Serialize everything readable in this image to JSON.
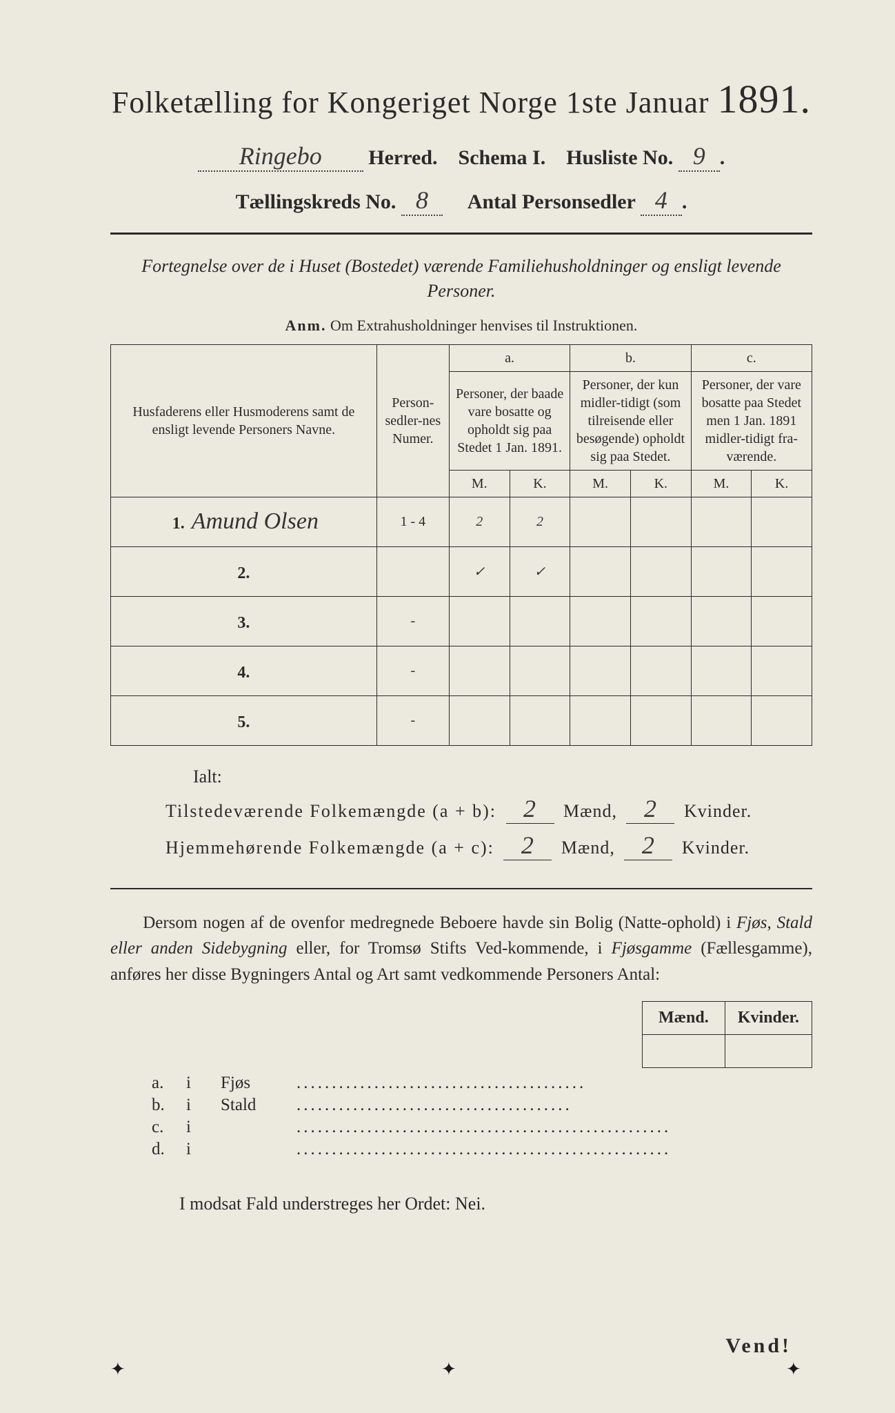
{
  "header": {
    "title_a": "Folketælling for Kongeriget Norge 1ste Januar ",
    "title_year": "1891.",
    "herred_hand": "Ringebo",
    "herred_label": " Herred.",
    "schema_label": "Schema I.",
    "husliste_label": "Husliste No.",
    "husliste_no": "9",
    "kreds_label": "Tællingskreds No.",
    "kreds_no": "8",
    "antal_label": "Antal Personsedler",
    "antal_no": "4"
  },
  "subtitle": "Fortegnelse over de i Huset (Bostedet) værende Familiehusholdninger og ensligt levende Personer.",
  "anm_b": "Anm.",
  "anm_t": " Om Extrahusholdninger henvises til Instruktionen.",
  "columns": {
    "names": "Husfaderens eller Husmoderens samt de ensligt levende Personers Navne.",
    "num": "Person-sedler-nes Numer.",
    "a_letter": "a.",
    "a_text": "Personer, der baade vare bosatte og opholdt sig paa Stedet 1 Jan. 1891.",
    "b_letter": "b.",
    "b_text": "Personer, der kun midler-tidigt (som tilreisende eller besøgende) opholdt sig paa Stedet.",
    "c_letter": "c.",
    "c_text": "Personer, der vare bosatte paa Stedet men 1 Jan. 1891 midler-tidigt fra-værende.",
    "M": "M.",
    "K": "K."
  },
  "rows": [
    {
      "n": "1.",
      "name": "Amund Olsen",
      "num": "1 - 4",
      "aM": "2",
      "aK": "2",
      "bM": "",
      "bK": "",
      "cM": "",
      "cK": ""
    },
    {
      "n": "2.",
      "name": "",
      "num": "",
      "aM": "✓",
      "aK": "✓",
      "bM": "",
      "bK": "",
      "cM": "",
      "cK": ""
    },
    {
      "n": "3.",
      "name": "",
      "num": "-",
      "aM": "",
      "aK": "",
      "bM": "",
      "bK": "",
      "cM": "",
      "cK": ""
    },
    {
      "n": "4.",
      "name": "",
      "num": "-",
      "aM": "",
      "aK": "",
      "bM": "",
      "bK": "",
      "cM": "",
      "cK": ""
    },
    {
      "n": "5.",
      "name": "",
      "num": "-",
      "aM": "",
      "aK": "",
      "bM": "",
      "bK": "",
      "cM": "",
      "cK": ""
    }
  ],
  "ialt": "Ialt:",
  "sum1": {
    "label": "Tilstedeværende Folkemængde (a + b):",
    "m": "2",
    "ml": "Mænd,",
    "k": "2",
    "kl": "Kvinder."
  },
  "sum2": {
    "label": "Hjemmehørende Folkemængde (a + c):",
    "m": "2",
    "ml": "Mænd,",
    "k": "2",
    "kl": "Kvinder."
  },
  "para": "Dersom nogen af de ovenfor medregnede Beboere havde sin Bolig (Natte-ophold) i Fjøs, Stald eller anden Sidebygning eller, for Tromsø Stifts Ved-kommende, i Fjøsgamme (Fællesgamme), anføres her disse Bygningers Antal og Art samt vedkommende Personers Antal:",
  "smallhead": {
    "m": "Mænd.",
    "k": "Kvinder."
  },
  "abcd": [
    {
      "lead": "a.",
      "i": "i",
      "label": "Fjøs",
      "dots": "........................................."
    },
    {
      "lead": "b.",
      "i": "i",
      "label": "Stald",
      "dots": "......................................."
    },
    {
      "lead": "c.",
      "i": "i",
      "label": "",
      "dots": "....................................................."
    },
    {
      "lead": "d.",
      "i": "i",
      "label": "",
      "dots": "....................................................."
    }
  ],
  "modsat": "I modsat Fald understreges her Ordet: Nei.",
  "vend": "Vend!",
  "style": {
    "bg": "#ece9df",
    "ink": "#2a2a2a",
    "title_fs": 44,
    "year_fs": 58,
    "body_fs": 25,
    "table_border": "1.5px solid #2a2a2a"
  }
}
